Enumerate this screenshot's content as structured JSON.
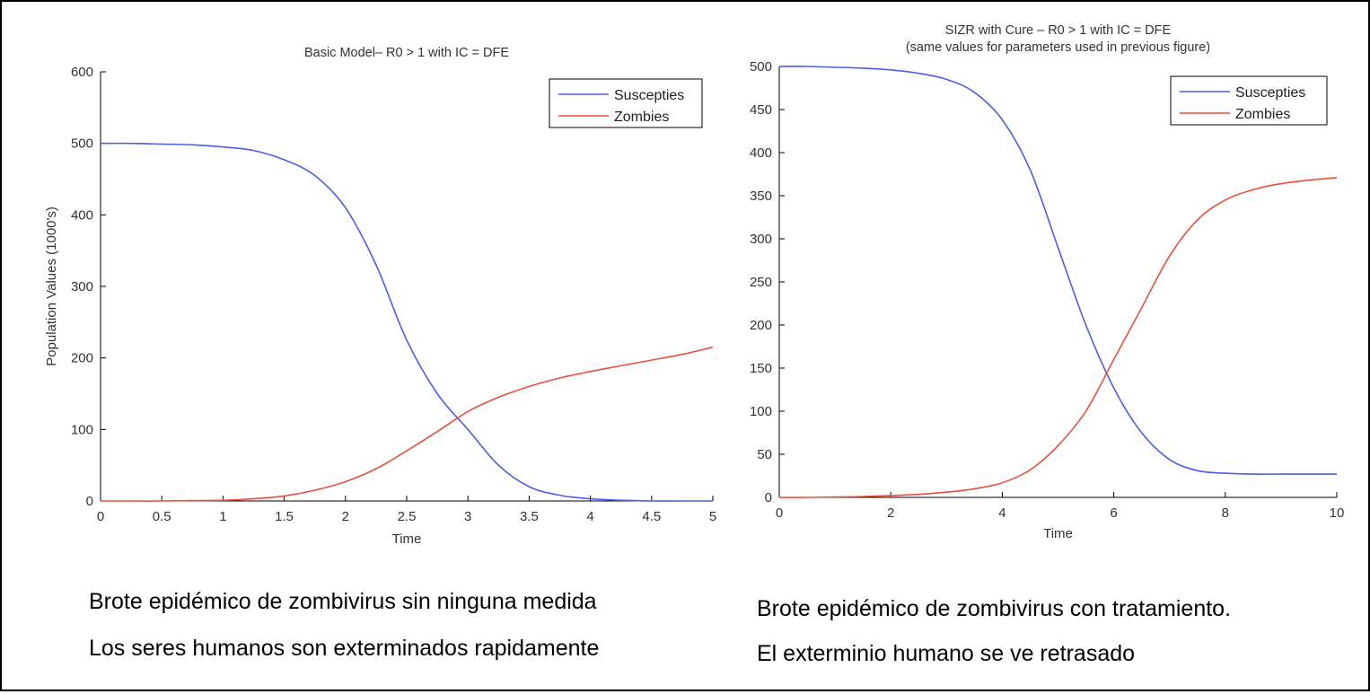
{
  "captions": {
    "left_1": "Brote epidémico de zombivirus sin ninguna medida",
    "left_2": "Los seres humanos son exterminados rapidamente",
    "right_1": "Brote epidémico de zombivirus con tratamiento.",
    "right_2": "El exterminio humano se ve retrasado"
  },
  "chart_data": [
    {
      "type": "line",
      "title": "Basic Model– R0 > 1 with IC = DFE",
      "subtitle": "",
      "xlabel": "Time",
      "ylabel": "Population Values (1000's)",
      "xlim": [
        0,
        5
      ],
      "ylim": [
        0,
        600
      ],
      "xticks": [
        0,
        0.5,
        1,
        1.5,
        2,
        2.5,
        3,
        3.5,
        4,
        4.5,
        5
      ],
      "xtick_labels": [
        "0",
        "0.5",
        "1",
        "1.5",
        "2",
        "2.5",
        "3",
        "3.5",
        "4",
        "4.5",
        "5"
      ],
      "yticks": [
        0,
        100,
        200,
        300,
        400,
        500,
        600
      ],
      "ytick_labels": [
        "0",
        "100",
        "200",
        "300",
        "400",
        "500",
        "600"
      ],
      "grid": false,
      "legend": "top-right",
      "series": [
        {
          "name": "Suscepties",
          "color": "#4a5ee8",
          "x": [
            0,
            0.25,
            0.5,
            0.75,
            1,
            1.25,
            1.5,
            1.75,
            2,
            2.25,
            2.5,
            2.75,
            3,
            3.25,
            3.5,
            3.75,
            4,
            4.25,
            4.5,
            4.75,
            5
          ],
          "y": [
            500,
            500,
            499,
            498,
            495,
            490,
            477,
            455,
            410,
            330,
            225,
            150,
            100,
            50,
            20,
            8,
            3,
            1,
            0,
            0,
            0
          ]
        },
        {
          "name": "Zombies",
          "color": "#e8503a",
          "x": [
            0,
            0.25,
            0.5,
            0.75,
            1,
            1.25,
            1.5,
            1.75,
            2,
            2.25,
            2.5,
            2.75,
            3,
            3.25,
            3.5,
            3.75,
            4,
            4.25,
            4.5,
            4.75,
            5
          ],
          "y": [
            0,
            0,
            0,
            0.5,
            1,
            3,
            7,
            15,
            27,
            45,
            70,
            97,
            125,
            145,
            160,
            172,
            181,
            189,
            197,
            205,
            215
          ]
        }
      ]
    },
    {
      "type": "line",
      "title": "SIZR with Cure – R0 > 1 with IC = DFE",
      "subtitle": "(same values for parameters used in previous figure)",
      "xlabel": "Time",
      "ylabel": "",
      "xlim": [
        0,
        10
      ],
      "ylim": [
        0,
        500
      ],
      "xticks": [
        0,
        2,
        4,
        6,
        8,
        10
      ],
      "xtick_labels": [
        "0",
        "2",
        "4",
        "6",
        "8",
        "10"
      ],
      "yticks": [
        0,
        50,
        100,
        150,
        200,
        250,
        300,
        350,
        400,
        450,
        500
      ],
      "ytick_labels": [
        "0",
        "50",
        "100",
        "150",
        "200",
        "250",
        "300",
        "350",
        "400",
        "450",
        "500"
      ],
      "grid": false,
      "legend": "top-right",
      "series": [
        {
          "name": "Suscepties",
          "color": "#4a5ee8",
          "x": [
            0,
            0.5,
            1,
            1.5,
            2,
            2.5,
            3,
            3.5,
            4,
            4.5,
            5,
            5.5,
            6,
            6.5,
            7,
            7.5,
            8,
            8.5,
            9,
            9.5,
            10
          ],
          "y": [
            500,
            500,
            499,
            498,
            496,
            492,
            485,
            470,
            438,
            380,
            290,
            200,
            127,
            75,
            44,
            31,
            28,
            27,
            27,
            27,
            27
          ]
        },
        {
          "name": "Zombies",
          "color": "#e8503a",
          "x": [
            0,
            0.5,
            1,
            1.5,
            2,
            2.5,
            3,
            3.5,
            4,
            4.5,
            5,
            5.5,
            6,
            6.5,
            7,
            7.5,
            8,
            8.5,
            9,
            9.5,
            10
          ],
          "y": [
            0,
            0,
            0.5,
            1,
            2,
            3.5,
            6,
            10,
            17,
            32,
            60,
            100,
            160,
            220,
            280,
            322,
            345,
            357,
            364,
            368,
            371
          ]
        }
      ]
    }
  ]
}
